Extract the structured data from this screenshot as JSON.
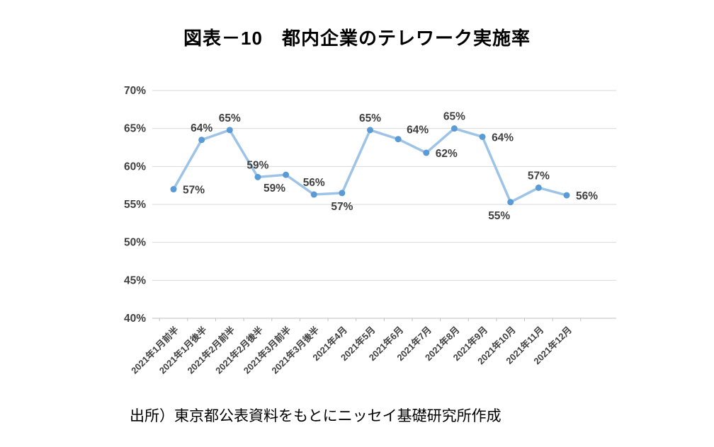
{
  "title": "図表－10　都内企業のテレワーク実施率",
  "source": "出所）東京都公表資料をもとにニッセイ基礎研究所作成",
  "chart_data": {
    "type": "line",
    "title": "図表－10　都内企業のテレワーク実施率",
    "categories": [
      "2021年1月前半",
      "2021年1月後半",
      "2021年2月前半",
      "2021年2月後半",
      "2021年3月前半",
      "2021年3月後半",
      "2021年4月",
      "2021年5月",
      "2021年6月",
      "2021年7月",
      "2021年8月",
      "2021年9月",
      "2021年10月",
      "2021年11月",
      "2021年12月"
    ],
    "values": [
      57.0,
      63.5,
      64.8,
      58.6,
      58.9,
      56.3,
      56.5,
      64.8,
      63.6,
      61.8,
      65.0,
      63.9,
      55.3,
      57.2,
      56.2
    ],
    "data_labels": [
      "57%",
      "64%",
      "65%",
      "59%",
      "59%",
      "56%",
      "57%",
      "65%",
      "64%",
      "62%",
      "65%",
      "64%",
      "55%",
      "57%",
      "56%"
    ],
    "label_placements": [
      "right",
      "above",
      "above",
      "above",
      "below-left",
      "above",
      "below",
      "above",
      "above-right",
      "right",
      "above",
      "right",
      "below-left",
      "above",
      "right"
    ],
    "ylim": [
      40,
      70
    ],
    "ytick_step": 5,
    "ytick_labels": [
      "40%",
      "45%",
      "50%",
      "55%",
      "60%",
      "65%",
      "70%"
    ],
    "grid": "horizontal",
    "legend": "none",
    "line_color": "#9dc3e6",
    "marker_color": "#5b9bd5",
    "label_color": "#404040",
    "grid_color": "#d9d9d9",
    "axis_color": "#bfbfbf"
  }
}
